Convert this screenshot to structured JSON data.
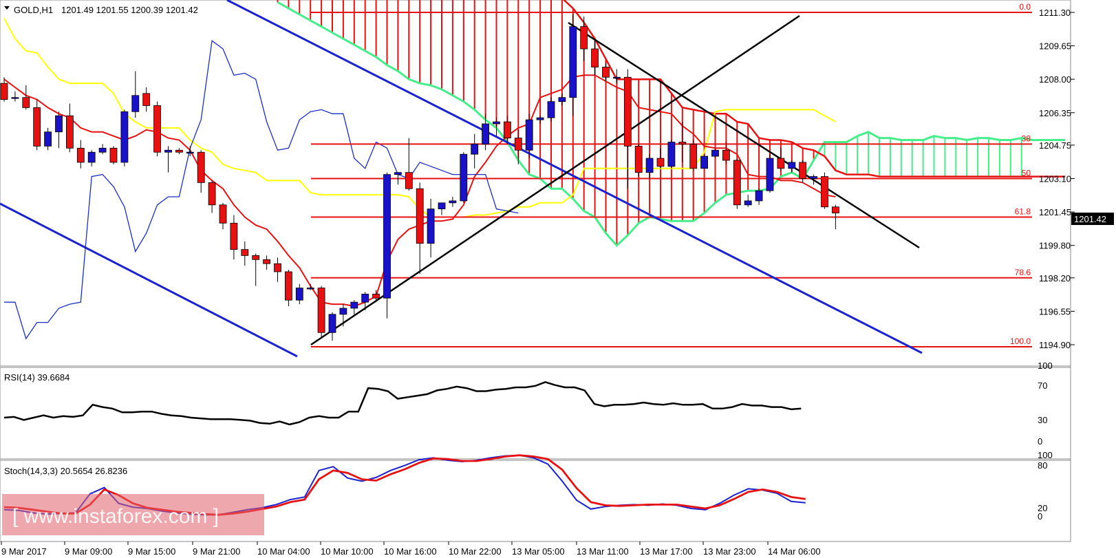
{
  "header": {
    "symbol": "GOLD,H1",
    "ohlc": "1201.49 1201.55 1200.39 1201.42"
  },
  "colors": {
    "bull": "#1a12c8",
    "bear": "#e81111",
    "tenkan": "#e81111",
    "kijun": "#ffff00",
    "chikou": "#1a2ec8",
    "spanA": "#44ee88",
    "fib": "#e81111",
    "trend": "#000000",
    "channel": "#1a22d0",
    "rsi": "#000000",
    "stochMain": "#1a22d0",
    "stochSignal": "#e81111"
  },
  "chart_data": [
    {
      "type": "candlestick",
      "title": "GOLD,H1",
      "yticks": [
        "1211.30",
        "1209.65",
        "1208.00",
        "1206.35",
        "1204.75",
        "1203.10",
        "1201.45",
        "1199.80",
        "1198.20",
        "1196.55",
        "1194.90"
      ],
      "ylim": [
        1194.4,
        1211.9
      ],
      "current_price": "1201.42",
      "x_labels": [
        "9 Mar 2017",
        "9 Mar 09:00",
        "9 Mar 15:00",
        "9 Mar 21:00",
        "10 Mar 04:00",
        "10 Mar 10:00",
        "10 Mar 16:00",
        "10 Mar 22:00",
        "13 Mar 05:00",
        "13 Mar 11:00",
        "13 Mar 17:00",
        "13 Mar 23:00",
        "14 Mar 06:00"
      ],
      "candles": [
        [
          1207.8,
          1208.1,
          1206.9,
          1207.0
        ],
        [
          1207.1,
          1207.4,
          1206.9,
          1207.1
        ],
        [
          1207.1,
          1207.7,
          1206.5,
          1206.6
        ],
        [
          1206.6,
          1207.0,
          1204.5,
          1204.7
        ],
        [
          1204.7,
          1205.6,
          1204.5,
          1205.4
        ],
        [
          1205.4,
          1206.4,
          1204.6,
          1206.2
        ],
        [
          1206.2,
          1206.8,
          1204.4,
          1204.6
        ],
        [
          1204.6,
          1205.0,
          1203.6,
          1203.9
        ],
        [
          1203.9,
          1204.5,
          1203.7,
          1204.4
        ],
        [
          1204.4,
          1204.8,
          1204.3,
          1204.6
        ],
        [
          1204.6,
          1204.7,
          1203.8,
          1203.9
        ],
        [
          1203.9,
          1206.5,
          1203.7,
          1206.4
        ],
        [
          1206.4,
          1208.4,
          1206.1,
          1207.2
        ],
        [
          1207.3,
          1207.6,
          1206.4,
          1206.7
        ],
        [
          1206.7,
          1206.9,
          1204.2,
          1204.4
        ],
        [
          1204.4,
          1204.7,
          1203.4,
          1204.5
        ],
        [
          1204.5,
          1204.6,
          1204.3,
          1204.4
        ],
        [
          1204.4,
          1204.7,
          1204.2,
          1204.4
        ],
        [
          1204.4,
          1204.5,
          1202.4,
          1202.9
        ],
        [
          1202.9,
          1203.0,
          1201.4,
          1201.8
        ],
        [
          1201.8,
          1201.9,
          1200.6,
          1200.9
        ],
        [
          1200.9,
          1201.3,
          1199.1,
          1199.6
        ],
        [
          1199.6,
          1200.0,
          1198.8,
          1199.3
        ],
        [
          1199.3,
          1199.4,
          1197.8,
          1199.1
        ],
        [
          1199.1,
          1199.3,
          1198.6,
          1198.9
        ],
        [
          1198.9,
          1199.2,
          1198.0,
          1198.5
        ],
        [
          1198.5,
          1198.6,
          1196.8,
          1197.1
        ],
        [
          1197.1,
          1197.9,
          1196.9,
          1197.7
        ],
        [
          1197.7,
          1197.9,
          1197.6,
          1197.7
        ],
        [
          1197.7,
          1197.8,
          1195.2,
          1195.5
        ],
        [
          1195.5,
          1196.5,
          1195.1,
          1196.4
        ],
        [
          1196.4,
          1196.9,
          1195.8,
          1196.7
        ],
        [
          1196.7,
          1197.1,
          1196.4,
          1197.0
        ],
        [
          1197.0,
          1197.5,
          1196.6,
          1197.4
        ],
        [
          1197.4,
          1197.6,
          1197.0,
          1197.2
        ],
        [
          1197.2,
          1203.4,
          1196.2,
          1203.3
        ],
        [
          1203.3,
          1203.4,
          1202.8,
          1203.4
        ],
        [
          1203.4,
          1205.1,
          1202.5,
          1202.6
        ],
        [
          1202.6,
          1202.9,
          1198.4,
          1199.9
        ],
        [
          1199.9,
          1202.1,
          1199.2,
          1201.6
        ],
        [
          1201.6,
          1201.9,
          1201.3,
          1201.9
        ],
        [
          1201.9,
          1202.2,
          1201.7,
          1202.0
        ],
        [
          1202.0,
          1204.4,
          1201.9,
          1204.3
        ],
        [
          1204.3,
          1205.3,
          1203.6,
          1204.8
        ],
        [
          1204.8,
          1206.3,
          1204.5,
          1205.8
        ],
        [
          1205.8,
          1206.1,
          1205.2,
          1205.9
        ],
        [
          1205.9,
          1206.2,
          1204.8,
          1205.1
        ],
        [
          1205.1,
          1205.5,
          1203.8,
          1204.5
        ],
        [
          1204.5,
          1206.3,
          1204.1,
          1206.0
        ],
        [
          1206.0,
          1206.2,
          1205.8,
          1206.1
        ],
        [
          1206.1,
          1207.1,
          1205.9,
          1206.9
        ],
        [
          1206.9,
          1207.3,
          1206.7,
          1207.1
        ],
        [
          1207.1,
          1211.2,
          1206.2,
          1210.6
        ],
        [
          1210.6,
          1211.1,
          1208.9,
          1209.5
        ],
        [
          1209.5,
          1209.9,
          1208.2,
          1208.6
        ],
        [
          1208.6,
          1208.8,
          1207.9,
          1208.1
        ],
        [
          1208.1,
          1208.5,
          1207.8,
          1208.1
        ],
        [
          1208.1,
          1208.5,
          1202.6,
          1204.7
        ],
        [
          1204.7,
          1204.8,
          1203.2,
          1203.4
        ],
        [
          1203.4,
          1204.3,
          1203.1,
          1204.1
        ],
        [
          1204.1,
          1204.6,
          1203.6,
          1203.7
        ],
        [
          1203.7,
          1205.0,
          1203.6,
          1204.9
        ],
        [
          1204.9,
          1205.9,
          1203.9,
          1204.8
        ],
        [
          1204.8,
          1205.0,
          1203.5,
          1203.6
        ],
        [
          1203.6,
          1204.3,
          1203.6,
          1204.2
        ],
        [
          1204.2,
          1204.6,
          1204.1,
          1204.5
        ],
        [
          1204.5,
          1204.9,
          1203.8,
          1204.0
        ],
        [
          1204.0,
          1204.1,
          1201.6,
          1201.8
        ],
        [
          1201.8,
          1202.3,
          1201.7,
          1202.0
        ],
        [
          1202.0,
          1202.6,
          1201.8,
          1202.5
        ],
        [
          1202.5,
          1204.3,
          1202.4,
          1204.1
        ],
        [
          1204.1,
          1204.6,
          1203.5,
          1203.6
        ],
        [
          1203.6,
          1204.0,
          1203.4,
          1203.9
        ],
        [
          1203.9,
          1204.0,
          1202.9,
          1203.1
        ],
        [
          1203.1,
          1203.3,
          1202.8,
          1203.2
        ],
        [
          1203.2,
          1203.4,
          1201.6,
          1201.7
        ],
        [
          1201.7,
          1201.8,
          1200.6,
          1201.4
        ]
      ],
      "ichimoku": {
        "tenkan": [
          1208.0,
          1207.6,
          1207.2,
          1207.0,
          1206.6,
          1206.3,
          1206.1,
          1205.6,
          1205.4,
          1205.4,
          1205.2,
          1205.0,
          1205.2,
          1205.5,
          1205.4,
          1205.1,
          1205.0,
          1204.5,
          1203.5,
          1203.0,
          1202.6,
          1201.8,
          1201.2,
          1200.8,
          1200.6,
          1200.0,
          1199.3,
          1198.7,
          1197.8,
          1197.0,
          1196.9,
          1196.9,
          1196.8,
          1197.0,
          1197.3,
          1199.0,
          1200.1,
          1200.6,
          1200.8,
          1201.0,
          1201.0,
          1201.1,
          1201.8,
          1203.2,
          1203.9,
          1204.7,
          1205.2,
          1205.6,
          1205.8,
          1207.1,
          1207.3,
          1207.5,
          1208.1,
          1208.2,
          1208.2,
          1207.9,
          1207.6,
          1207.4,
          1206.6,
          1206.5,
          1206.4,
          1206.3,
          1205.7,
          1205.3,
          1204.7,
          1204.6,
          1204.6,
          1204.3,
          1203.3,
          1203.2,
          1203.2,
          1203.0,
          1203.0,
          1202.9,
          1202.6,
          1202.3,
          1202.2
        ],
        "kijun": [
          1211.0,
          1210.0,
          1209.4,
          1209.3,
          1208.6,
          1208.0,
          1207.8,
          1207.8,
          1207.8,
          1207.8,
          1207.3,
          1206.3,
          1205.9,
          1205.6,
          1205.6,
          1205.6,
          1205.6,
          1205.0,
          1204.6,
          1204.4,
          1203.8,
          1203.6,
          1203.5,
          1203.4,
          1203.0,
          1203.0,
          1203.0,
          1203.0,
          1202.4,
          1202.3,
          1202.3,
          1202.3,
          1202.3,
          1202.3,
          1202.3,
          1202.3,
          1202.3,
          1202.2,
          1201.6,
          1201.2,
          1201.2,
          1201.2,
          1201.2,
          1201.3,
          1201.3,
          1201.4,
          1201.5,
          1201.7,
          1201.7,
          1201.9,
          1201.9,
          1201.9,
          1202.3,
          1203.6,
          1203.6,
          1203.6,
          1203.6,
          1203.6,
          1203.6,
          1203.6,
          1203.6,
          1203.6,
          1203.6,
          1203.6,
          1204.4,
          1206.4,
          1206.5,
          1206.5,
          1206.5,
          1206.5,
          1206.5,
          1206.5,
          1206.5,
          1206.5,
          1206.5,
          1206.2,
          1205.9
        ],
        "senkou_a": [
          1211.8,
          1211.5,
          1211.2,
          1210.9,
          1210.6,
          1210.3,
          1210.0,
          1209.7,
          1209.4,
          1209.1,
          1208.7,
          1208.4,
          1208.0,
          1207.8,
          1207.7,
          1207.5,
          1207.2,
          1206.9,
          1206.5,
          1206.0,
          1205.6,
          1204.9,
          1204.0,
          1203.3,
          1203.1,
          1202.6,
          1202.6,
          1202.1,
          1201.5,
          1201.2,
          1200.4,
          1199.8,
          1200.3,
          1200.9,
          1201.2,
          1201.1,
          1201.0,
          1201.0,
          1201.0,
          1201.4,
          1201.9,
          1202.3,
          1202.4,
          1202.5,
          1202.5,
          1202.6,
          1203.2,
          1203.4,
          1203.1,
          1204.0,
          1204.9,
          1204.9,
          1204.9,
          1205.2,
          1205.4,
          1205.1,
          1205.1,
          1205.0,
          1205.0,
          1205.0,
          1205.2,
          1205.1,
          1205.1,
          1205.0,
          1205.1,
          1205.1,
          1205.0,
          1205.0,
          1205.1,
          1205.0,
          1205.0,
          1205.0,
          1205.0
        ],
        "senkou_b": [
          1212.0,
          1212.0,
          1212.0,
          1212.0,
          1212.0,
          1212.0,
          1212.0,
          1212.0,
          1212.0,
          1212.0,
          1212.0,
          1212.0,
          1212.0,
          1212.0,
          1212.0,
          1212.0,
          1212.0,
          1212.0,
          1212.0,
          1212.0,
          1212.0,
          1212.0,
          1212.0,
          1212.0,
          1212.0,
          1212.0,
          1212.0,
          1211.5,
          1210.8,
          1210.0,
          1209.0,
          1208.0,
          1208.0,
          1208.0,
          1208.0,
          1208.0,
          1207.3,
          1206.6,
          1206.5,
          1206.4,
          1206.3,
          1206.3,
          1205.9,
          1205.8,
          1205.1,
          1205.0,
          1205.0,
          1204.9,
          1204.6,
          1204.5,
          1204.2,
          1203.5,
          1203.3,
          1203.3,
          1203.3,
          1203.2,
          1203.2,
          1203.2,
          1203.2,
          1203.2,
          1203.2,
          1203.2,
          1203.2,
          1203.2,
          1203.2,
          1203.2,
          1203.2,
          1203.2,
          1203.2,
          1203.2,
          1203.2,
          1203.2,
          1203.2
        ],
        "chikou": [
          1197.0,
          1197.0,
          1195.2,
          1196.0,
          1196.0,
          1196.7,
          1196.9,
          1197.0,
          1203.2,
          1203.3,
          1202.7,
          1201.7,
          1199.5,
          1200.4,
          1201.8,
          1202.2,
          1202.2,
          1204.6,
          1206.0,
          1209.9,
          1209.5,
          1208.2,
          1208.3,
          1208.0,
          1205.9,
          1204.5,
          1204.6,
          1206.0,
          1206.4,
          1206.5,
          1206.3,
          1206.3,
          1204.1,
          1203.6,
          1204.9,
          1204.6,
          1203.3,
          1203.1,
          1203.9,
          1203.7,
          1203.5,
          1203.3,
          1203.3,
          1203.3,
          1203.3,
          1201.6,
          1201.5,
          1201.4
        ]
      },
      "fibonacci": [
        {
          "label": "0.0",
          "price": 1211.3
        },
        {
          "label": "38",
          "price": 1204.8
        },
        {
          "label": "50",
          "price": 1203.1
        },
        {
          "label": "61.8",
          "price": 1201.2
        },
        {
          "label": "78.6",
          "price": 1198.2
        },
        {
          "label": "100.0",
          "price": 1194.8
        }
      ]
    },
    {
      "type": "line",
      "title": "RSI(14) 39.6684",
      "yticks": [
        "100",
        "70",
        "30",
        "0"
      ],
      "ylim": [
        0,
        100
      ],
      "values": [
        30,
        31,
        27,
        30,
        33,
        30,
        32,
        31,
        33,
        47,
        44,
        42,
        37,
        37,
        38,
        38,
        35,
        33,
        32,
        30,
        29,
        28,
        28,
        28,
        27,
        26,
        23,
        22,
        25,
        21,
        24,
        30,
        32,
        30,
        30,
        38,
        38,
        69,
        68,
        65,
        55,
        57,
        59,
        61,
        66,
        68,
        71,
        69,
        65,
        65,
        67,
        68,
        70,
        70,
        72,
        77,
        73,
        70,
        70,
        66,
        48,
        45,
        47,
        47,
        48,
        50,
        48,
        47,
        49,
        47,
        47,
        48,
        42,
        42,
        44,
        48,
        46,
        46,
        44,
        44,
        41,
        42
      ]
    },
    {
      "type": "line",
      "title": "Stoch(14,3,3) 20.5654 26.8236",
      "yticks": [
        "100",
        "80",
        "20",
        "0"
      ],
      "ylim": [
        0,
        100
      ],
      "series": [
        {
          "name": "main",
          "values": [
            10,
            9,
            5,
            3,
            4,
            5,
            35,
            45,
            20,
            14,
            12,
            8,
            5,
            3,
            2,
            2,
            6,
            10,
            13,
            18,
            26,
            30,
            72,
            78,
            60,
            55,
            61,
            72,
            80,
            89,
            92,
            88,
            86,
            88,
            92,
            95,
            96,
            92,
            82,
            55,
            25,
            11,
            15,
            17,
            18,
            17,
            19,
            17,
            12,
            10,
            20,
            33,
            43,
            41,
            36,
            23,
            21
          ]
        },
        {
          "name": "signal",
          "values": [
            14,
            13,
            10,
            7,
            4,
            4,
            18,
            42,
            33,
            20,
            13,
            10,
            7,
            5,
            3,
            2,
            4,
            7,
            11,
            15,
            22,
            26,
            58,
            72,
            68,
            58,
            56,
            66,
            74,
            84,
            91,
            90,
            87,
            87,
            90,
            94,
            96,
            94,
            90,
            73,
            44,
            22,
            17,
            16,
            17,
            18,
            18,
            18,
            15,
            12,
            17,
            27,
            38,
            42,
            38,
            30,
            27
          ]
        }
      ]
    }
  ]
}
